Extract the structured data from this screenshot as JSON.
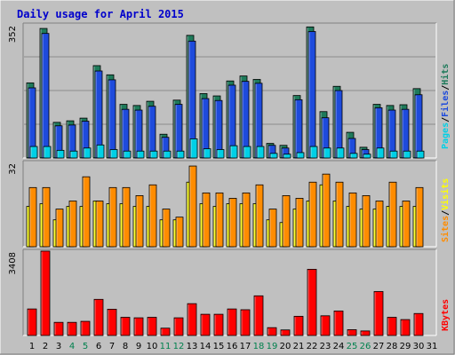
{
  "chart_data": {
    "type": "bar",
    "title": "Daily usage for April 2015",
    "categories": [
      "1",
      "2",
      "3",
      "4",
      "5",
      "6",
      "7",
      "8",
      "9",
      "10",
      "11",
      "12",
      "13",
      "14",
      "15",
      "16",
      "17",
      "18",
      "19",
      "20",
      "21",
      "22",
      "23",
      "24",
      "25",
      "26",
      "27",
      "28",
      "29",
      "30",
      "31"
    ],
    "weekend_days": [
      "4",
      "5",
      "11",
      "12",
      "18",
      "19",
      "25",
      "26"
    ],
    "panels": [
      {
        "id": "hits",
        "max_label": "352",
        "ymax": 352,
        "series": [
          {
            "name": "Hits",
            "color": "#1e7a5a",
            "values": [
              196,
              338,
              93,
              97,
              104,
              241,
              217,
              140,
              137,
              148,
              62,
              151,
              320,
              168,
              162,
              201,
              214,
              205,
              38,
              33,
              163,
              342,
              121,
              187,
              67,
              28,
              140,
              137,
              139,
              181
            ]
          },
          {
            "name": "Files",
            "color": "#1e4bdc",
            "values": [
              183,
              325,
              84,
              86,
              96,
              227,
              204,
              127,
              125,
              135,
              54,
              140,
              305,
              155,
              150,
              190,
              200,
              195,
              33,
              26,
              152,
              330,
              105,
              176,
              51,
              22,
              131,
              125,
              127,
              165
            ]
          },
          {
            "name": "Pages",
            "color": "#00d0e6",
            "values": [
              30,
              30,
              20,
              18,
              26,
              34,
              22,
              18,
              18,
              18,
              18,
              18,
              50,
              24,
              22,
              32,
              30,
              30,
              12,
              10,
              14,
              30,
              26,
              26,
              12,
              10,
              26,
              18,
              18,
              18
            ]
          }
        ]
      },
      {
        "id": "visits",
        "max_label": "32",
        "ymax": 32,
        "series": [
          {
            "name": "Sites",
            "color": "#ff8c00",
            "values": [
              22,
              22,
              14,
              17,
              26,
              17,
              22,
              22,
              19,
              23,
              14,
              11,
              30,
              20,
              20,
              18,
              20,
              23,
              14,
              19,
              18,
              24,
              27,
              24,
              20,
              19,
              17,
              24,
              17,
              22
            ]
          },
          {
            "name": "Visits",
            "color": "#ffff00",
            "values": [
              15,
              16,
              10,
              15,
              15,
              17,
              16,
              16,
              15,
              15,
              10,
              10,
              24,
              16,
              15,
              16,
              16,
              16,
              10,
              9,
              14,
              17,
              23,
              17,
              15,
              14,
              14,
              15,
              15,
              15
            ]
          }
        ]
      },
      {
        "id": "kbytes",
        "max_label": "3408",
        "ymax": 3408,
        "series": [
          {
            "name": "KBytes",
            "color": "#ff0000",
            "values": [
              1050,
              3340,
              520,
              520,
              560,
              1430,
              1040,
              720,
              700,
              720,
              290,
              700,
              1260,
              840,
              840,
              1050,
              1020,
              1570,
              310,
              220,
              760,
              2620,
              780,
              970,
              230,
              180,
              1740,
              720,
              630,
              870
            ]
          }
        ]
      }
    ],
    "legend_right": {
      "top": [
        "Pages",
        "/",
        "Files",
        "/",
        "Hits"
      ],
      "middle": [
        "Sites",
        "/",
        "Visits"
      ],
      "bottom": [
        "KBytes"
      ]
    }
  }
}
